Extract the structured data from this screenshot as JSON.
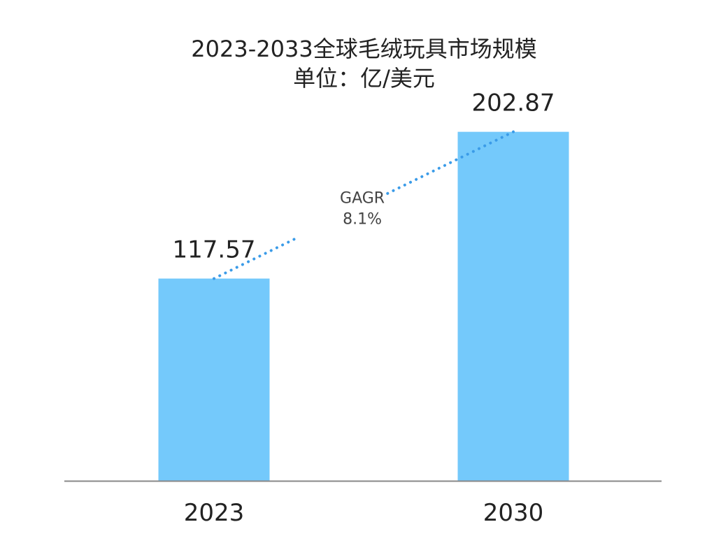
{
  "chart_data": {
    "type": "bar",
    "title": "2023-2033全球毛绒玩具市场规模",
    "subtitle": "单位：亿/美元",
    "categories": [
      "2023",
      "2030"
    ],
    "values": [
      117.57,
      202.87
    ],
    "value_labels": [
      "117.57",
      "202.87"
    ],
    "xlabel": "",
    "ylabel": "",
    "ylim": [
      0,
      260
    ],
    "grid": false,
    "annotation": {
      "line1": "GAGR",
      "line2": "8.1%"
    },
    "colors": {
      "bar": "#74C9FB",
      "trend": "#3A9BE8",
      "axis": "#888888",
      "text": "#222222",
      "annotation_text": "#444444"
    }
  }
}
